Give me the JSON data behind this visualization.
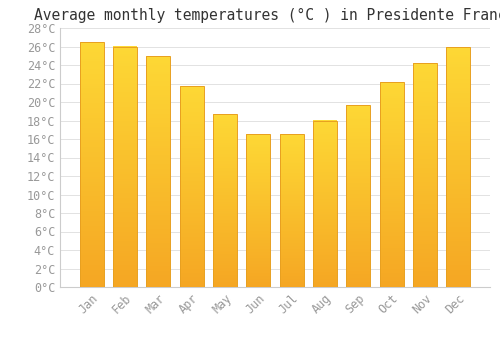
{
  "title": "Average monthly temperatures (°C ) in Presidente Franco",
  "months": [
    "Jan",
    "Feb",
    "Mar",
    "Apr",
    "May",
    "Jun",
    "Jul",
    "Aug",
    "Sep",
    "Oct",
    "Nov",
    "Dec"
  ],
  "values": [
    26.5,
    26.0,
    25.0,
    21.7,
    18.7,
    16.5,
    16.5,
    18.0,
    19.7,
    22.2,
    24.2,
    25.9
  ],
  "bar_color_top": "#FDD835",
  "bar_color_bottom": "#F5A623",
  "bar_edge_color": "#E8A020",
  "background_color": "#FFFFFF",
  "grid_color": "#DDDDDD",
  "y_min": 0,
  "y_max": 28,
  "y_step": 2,
  "title_fontsize": 10.5,
  "tick_fontsize": 8.5,
  "tick_font": "monospace"
}
